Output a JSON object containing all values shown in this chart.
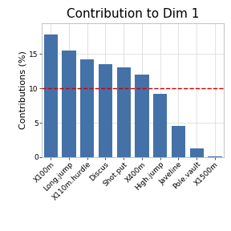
{
  "title": "Contribution to Dim 1",
  "ylabel": "Contributions (%)",
  "categories": [
    "X100m",
    "Long.jump",
    "X110m.hurdle",
    "Discus",
    "Shot.put",
    "X400m",
    "High.jump",
    "Javeline",
    "Pole.vault",
    "X1500m"
  ],
  "values": [
    17.8,
    15.5,
    14.2,
    13.5,
    13.0,
    12.0,
    9.2,
    4.5,
    1.3,
    0.15
  ],
  "bar_color": "#4472A8",
  "dashed_line_y": 10.0,
  "dashed_line_color": "#CC0000",
  "ylim": [
    0,
    19.5
  ],
  "yticks": [
    0,
    5,
    10,
    15
  ],
  "background_color": "#FFFFFF",
  "grid_color": "#DDDDDD",
  "title_fontsize": 11,
  "ylabel_fontsize": 8,
  "tick_fontsize": 6.5
}
